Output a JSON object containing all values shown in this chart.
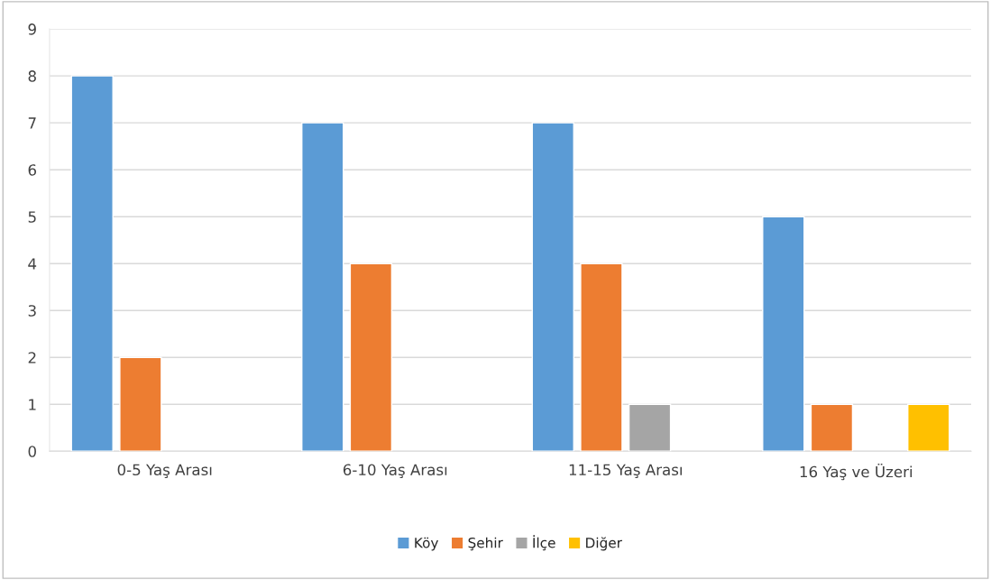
{
  "chart_data": {
    "type": "bar",
    "categories": [
      "0-5 Yaş Arası",
      "6-10 Yaş Arası",
      "11-15 Yaş Arası",
      "16 Yaş ve Üzeri"
    ],
    "series": [
      {
        "name": "Köy",
        "color": "#5b9bd5",
        "values": [
          8,
          7,
          7,
          5
        ]
      },
      {
        "name": "Şehir",
        "color": "#ed7d31",
        "values": [
          2,
          4,
          4,
          1
        ]
      },
      {
        "name": "İlçe",
        "color": "#a5a5a5",
        "values": [
          null,
          null,
          1,
          null
        ]
      },
      {
        "name": "Diğer",
        "color": "#ffc000",
        "values": [
          null,
          null,
          null,
          1
        ]
      }
    ],
    "ylim": [
      0,
      9
    ],
    "yticks": [
      0,
      1,
      2,
      3,
      4,
      5,
      6,
      7,
      8,
      9
    ],
    "grid": "y",
    "legend": "bottom"
  }
}
